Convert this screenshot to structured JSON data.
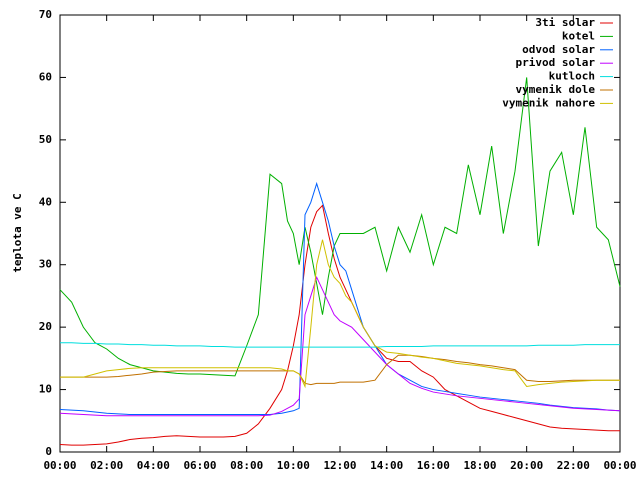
{
  "chart_data": {
    "type": "line",
    "y_label": "teplota ve C",
    "x": [
      0,
      0.5,
      1,
      1.5,
      2,
      2.5,
      3,
      3.5,
      4,
      4.5,
      5,
      5.5,
      6,
      6.5,
      7,
      7.5,
      8,
      8.5,
      9,
      9.5,
      9.75,
      10,
      10.25,
      10.5,
      10.75,
      11,
      11.25,
      11.5,
      11.75,
      12,
      12.25,
      12.5,
      13,
      13.5,
      14,
      14.5,
      15,
      15.5,
      16,
      16.5,
      17,
      17.5,
      18,
      18.5,
      19,
      19.5,
      20,
      20.5,
      21,
      21.5,
      22,
      22.5,
      23,
      23.5,
      24
    ],
    "xlim": [
      0,
      24
    ],
    "xticks": [
      {
        "value": 0,
        "label": "00:00"
      },
      {
        "value": 2,
        "label": "02:00"
      },
      {
        "value": 4,
        "label": "04:00"
      },
      {
        "value": 6,
        "label": "06:00"
      },
      {
        "value": 8,
        "label": "08:00"
      },
      {
        "value": 10,
        "label": "10:00"
      },
      {
        "value": 12,
        "label": "12:00"
      },
      {
        "value": 14,
        "label": "14:00"
      },
      {
        "value": 16,
        "label": "16:00"
      },
      {
        "value": 18,
        "label": "18:00"
      },
      {
        "value": 20,
        "label": "20:00"
      },
      {
        "value": 22,
        "label": "22:00"
      },
      {
        "value": 24,
        "label": "00:00"
      }
    ],
    "ylim": [
      0,
      70
    ],
    "yticks": [
      0,
      10,
      20,
      30,
      40,
      50,
      60,
      70
    ],
    "legend": "top-right",
    "series": [
      {
        "name": "3ti solar",
        "color": "#e00000",
        "values": [
          1.2,
          1.1,
          1.1,
          1.2,
          1.3,
          1.6,
          2,
          2.2,
          2.3,
          2.5,
          2.6,
          2.5,
          2.4,
          2.4,
          2.4,
          2.5,
          3,
          4.5,
          7,
          10,
          13,
          17,
          22,
          30,
          36,
          38.5,
          39.5,
          35,
          31,
          28,
          26,
          24,
          20,
          17,
          15,
          14.5,
          14.5,
          13,
          12,
          10,
          9,
          8,
          7,
          6.5,
          6,
          5.5,
          5,
          4.5,
          4,
          3.8,
          3.7,
          3.6,
          3.5,
          3.4,
          3.4
        ]
      },
      {
        "name": "kotel",
        "color": "#00b000",
        "values": [
          26,
          24,
          20,
          17.5,
          16.5,
          15,
          14,
          13.5,
          13,
          12.8,
          12.6,
          12.5,
          12.5,
          12.4,
          12.3,
          12.2,
          17,
          22,
          44.5,
          43,
          37,
          35,
          30,
          36,
          32,
          27,
          22,
          28,
          33,
          35,
          35,
          35,
          35,
          36,
          29,
          36,
          32,
          38,
          30,
          36,
          35,
          46,
          38,
          49,
          35,
          45,
          60,
          33,
          45,
          48,
          38,
          52,
          36,
          34,
          26.5
        ]
      },
      {
        "name": "odvod solar",
        "color": "#0060ff",
        "values": [
          6.8,
          6.7,
          6.6,
          6.4,
          6.2,
          6.1,
          6,
          6,
          6,
          6,
          6,
          6,
          6,
          6,
          6,
          6,
          6,
          6,
          6,
          6.2,
          6.4,
          6.6,
          7,
          38,
          40,
          43,
          40,
          37,
          33,
          30,
          29,
          26,
          20,
          17,
          14,
          12.5,
          11.5,
          10.5,
          10,
          9.7,
          9.4,
          9.1,
          8.8,
          8.6,
          8.4,
          8.2,
          8,
          7.8,
          7.5,
          7.3,
          7.1,
          7,
          6.9,
          6.7,
          6.6
        ]
      },
      {
        "name": "privod solar",
        "color": "#c000ff",
        "values": [
          6.2,
          6.1,
          6,
          5.9,
          5.8,
          5.8,
          5.8,
          5.8,
          5.8,
          5.8,
          5.8,
          5.8,
          5.8,
          5.8,
          5.8,
          5.8,
          5.8,
          5.8,
          5.9,
          6.5,
          7,
          7.5,
          8.5,
          22,
          25,
          28,
          26,
          24,
          22,
          21,
          20.5,
          20,
          18,
          16,
          14,
          12.5,
          11,
          10.2,
          9.6,
          9.3,
          9,
          8.8,
          8.6,
          8.4,
          8.2,
          8,
          7.8,
          7.6,
          7.4,
          7.2,
          7,
          6.9,
          6.8,
          6.7,
          6.6
        ]
      },
      {
        "name": "kutloch",
        "color": "#00dede",
        "values": [
          17.5,
          17.5,
          17.4,
          17.4,
          17.3,
          17.3,
          17.2,
          17.2,
          17.1,
          17.1,
          17,
          17,
          17,
          16.9,
          16.9,
          16.8,
          16.8,
          16.8,
          16.8,
          16.8,
          16.8,
          16.8,
          16.8,
          16.8,
          16.8,
          16.8,
          16.8,
          16.8,
          16.8,
          16.8,
          16.8,
          16.8,
          16.8,
          16.8,
          16.9,
          16.9,
          16.9,
          16.9,
          17,
          17,
          17,
          17,
          17,
          17,
          17,
          17,
          17,
          17.1,
          17.1,
          17.1,
          17.1,
          17.2,
          17.2,
          17.2,
          17.2
        ]
      },
      {
        "name": "vymenik dole",
        "color": "#c07000",
        "values": [
          12,
          12,
          12,
          12,
          12,
          12.1,
          12.3,
          12.5,
          12.8,
          12.9,
          13,
          13,
          13,
          13,
          13,
          13,
          13,
          13,
          13,
          13,
          13,
          13,
          12.5,
          11,
          10.8,
          11,
          11,
          11,
          11,
          11.2,
          11.2,
          11.2,
          11.2,
          11.5,
          14,
          15.5,
          15.5,
          15.3,
          15,
          14.8,
          14.5,
          14.3,
          14,
          13.8,
          13.5,
          13.2,
          11.5,
          11.3,
          11.3,
          11.4,
          11.5,
          11.5,
          11.5,
          11.5,
          11.5
        ]
      },
      {
        "name": "vymenik nahore",
        "color": "#d0c000",
        "values": [
          12,
          12,
          12,
          12.5,
          13,
          13.2,
          13.4,
          13.5,
          13.5,
          13.5,
          13.5,
          13.5,
          13.5,
          13.5,
          13.5,
          13.5,
          13.5,
          13.5,
          13.5,
          13.3,
          13,
          13,
          12.5,
          10.5,
          20,
          30,
          34,
          30,
          28,
          27,
          25,
          24,
          20,
          17,
          16,
          15.8,
          15.5,
          15.2,
          15,
          14.6,
          14.2,
          14,
          13.8,
          13.5,
          13.2,
          13,
          10.5,
          10.8,
          11,
          11.2,
          11.3,
          11.4,
          11.5,
          11.5,
          11.5
        ]
      }
    ]
  }
}
